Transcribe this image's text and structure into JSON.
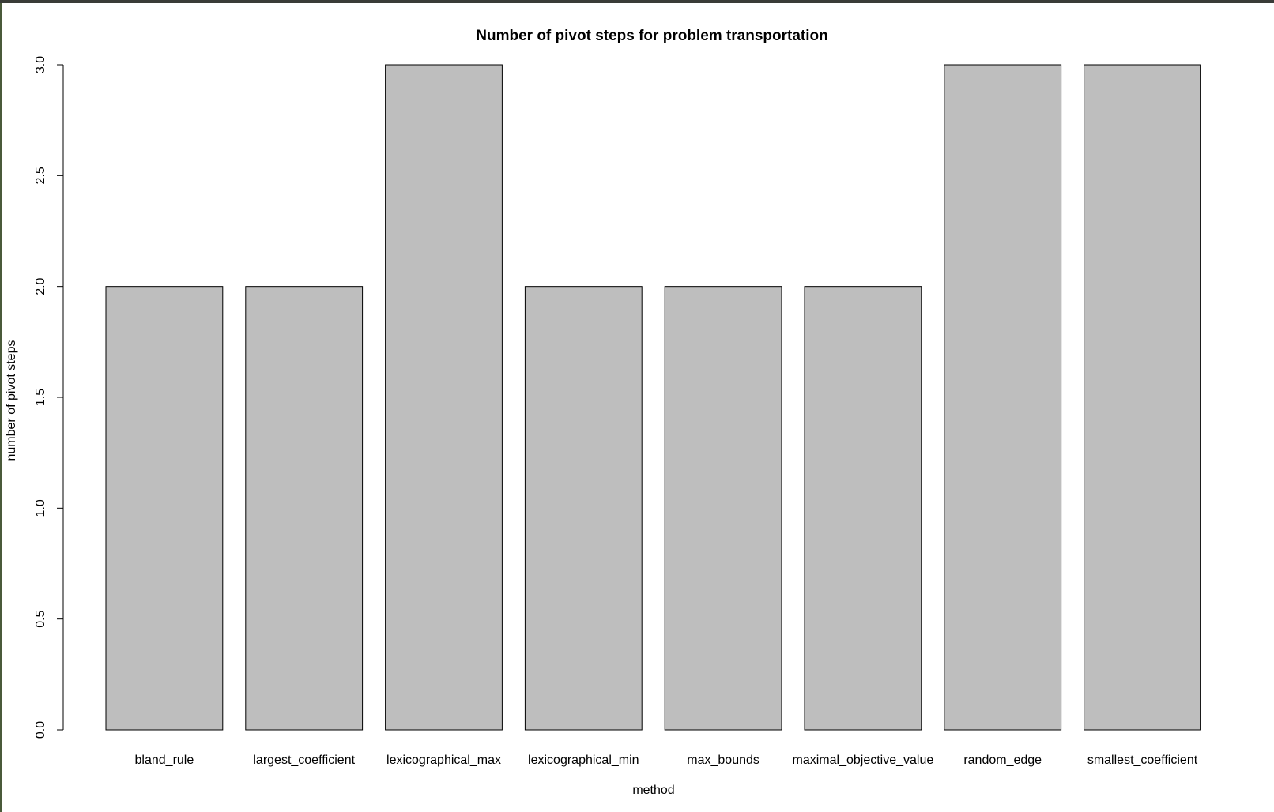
{
  "chart_data": {
    "type": "bar",
    "title": "Number of pivot steps for problem transportation",
    "xlabel": "method",
    "ylabel": "number of pivot steps",
    "categories": [
      "bland_rule",
      "largest_coefficient",
      "lexicographical_max",
      "lexicographical_min",
      "max_bounds",
      "maximal_objective_value",
      "random_edge",
      "smallest_coefficient"
    ],
    "values": [
      2,
      2,
      3,
      2,
      2,
      2,
      3,
      3
    ],
    "ylim": [
      0,
      3
    ],
    "yticks": [
      "0.0",
      "0.5",
      "1.0",
      "1.5",
      "2.0",
      "2.5",
      "3.0"
    ],
    "bar_color": "#bebebe",
    "bar_edge_color": "#000000",
    "grid": false,
    "legend": "none"
  }
}
